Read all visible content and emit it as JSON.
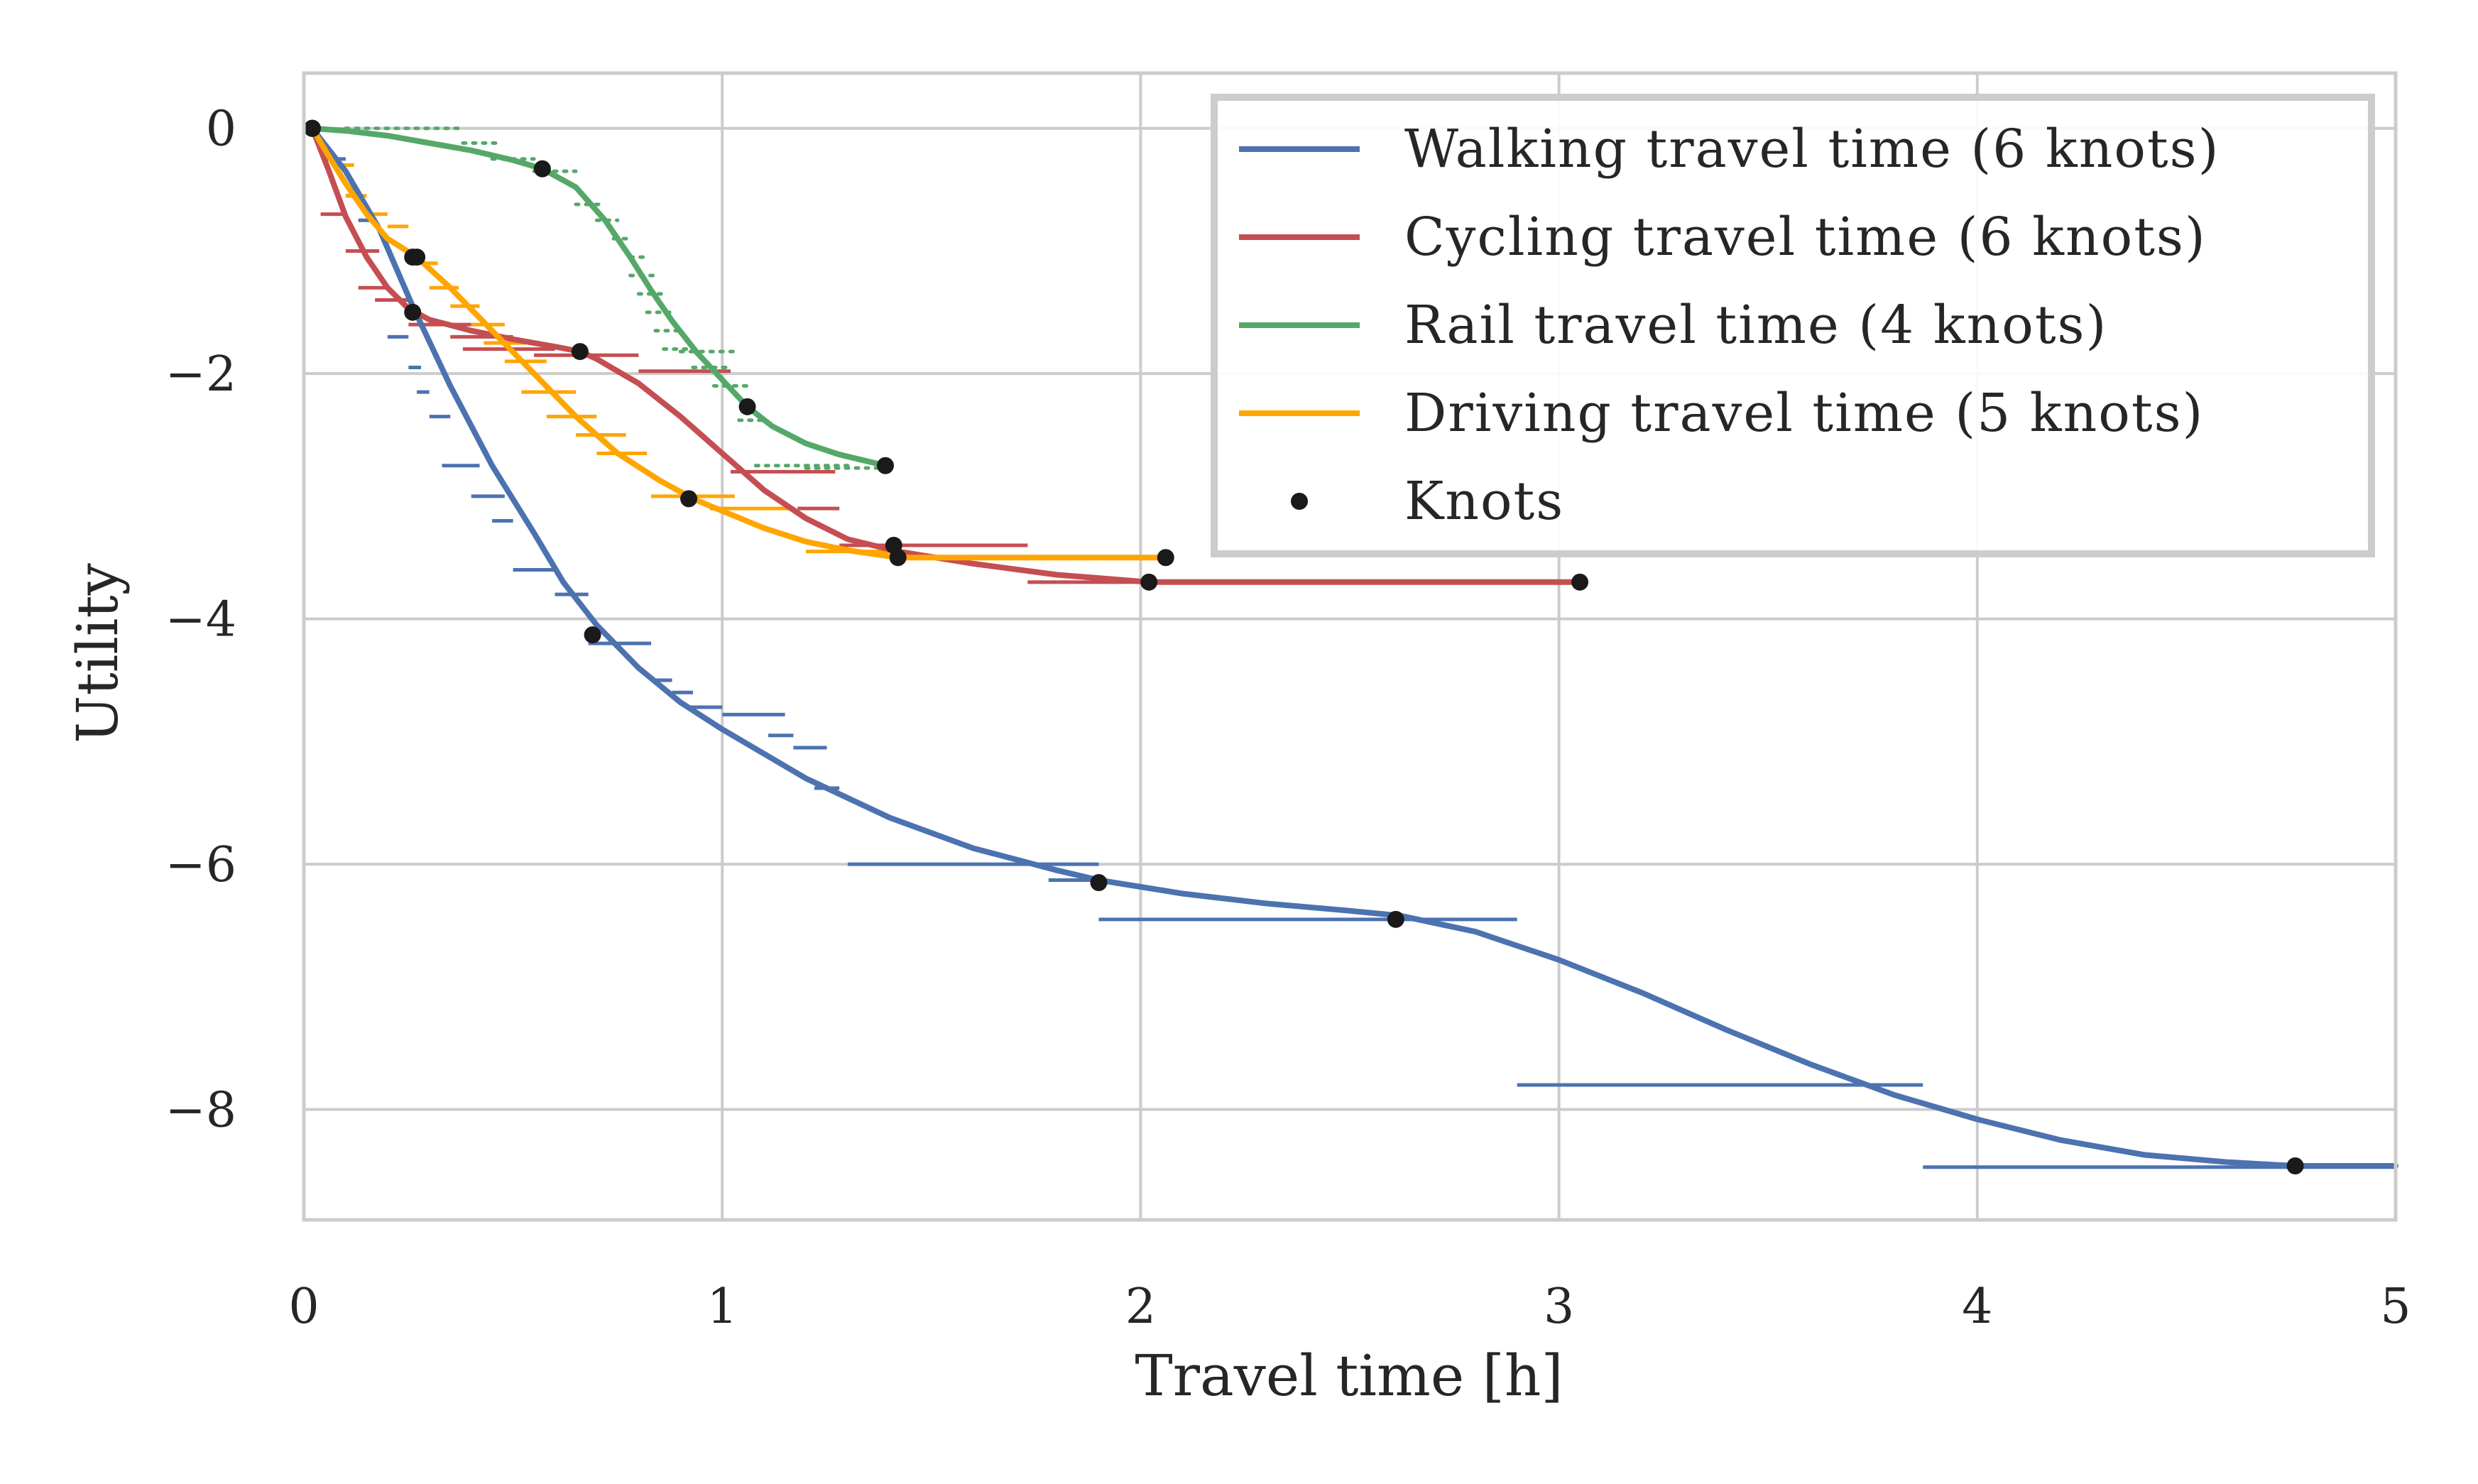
{
  "chart_data": {
    "type": "line",
    "title": "",
    "xlabel": "Travel time [h]",
    "ylabel": "Utility",
    "xlim": [
      0,
      5
    ],
    "ylim": [
      -8.9,
      0.45
    ],
    "xticks": [
      0,
      1,
      2,
      3,
      4,
      5
    ],
    "xtick_labels": [
      "0",
      "1",
      "2",
      "3",
      "4",
      "5"
    ],
    "yticks": [
      0,
      -2,
      -4,
      -6,
      -8
    ],
    "ytick_labels": [
      "0",
      "−2",
      "−4",
      "−6",
      "−8"
    ],
    "grid": true,
    "legend_position": "top-right",
    "colors": {
      "walking": "#4c72b0",
      "cycling": "#c44e52",
      "rail": "#55a868",
      "driving": "#ffa500",
      "knots": "#1a1a1a",
      "grid": "#cccccc",
      "frame": "#cccccc"
    },
    "series": [
      {
        "name": "Walking travel time (6 knots)",
        "color": "#4c72b0",
        "curve": [
          [
            0.02,
            0
          ],
          [
            0.1,
            -0.35
          ],
          [
            0.18,
            -0.82
          ],
          [
            0.26,
            -1.45
          ],
          [
            0.35,
            -2.1
          ],
          [
            0.45,
            -2.75
          ],
          [
            0.55,
            -3.3
          ],
          [
            0.62,
            -3.7
          ],
          [
            0.7,
            -4.05
          ],
          [
            0.8,
            -4.4
          ],
          [
            0.9,
            -4.68
          ],
          [
            1.0,
            -4.9
          ],
          [
            1.2,
            -5.3
          ],
          [
            1.4,
            -5.62
          ],
          [
            1.6,
            -5.87
          ],
          [
            1.8,
            -6.05
          ],
          [
            1.9,
            -6.13
          ],
          [
            2.1,
            -6.24
          ],
          [
            2.3,
            -6.32
          ],
          [
            2.5,
            -6.38
          ],
          [
            2.62,
            -6.42
          ],
          [
            2.8,
            -6.55
          ],
          [
            3.0,
            -6.78
          ],
          [
            3.2,
            -7.05
          ],
          [
            3.4,
            -7.35
          ],
          [
            3.6,
            -7.63
          ],
          [
            3.8,
            -7.88
          ],
          [
            4.0,
            -8.08
          ],
          [
            4.2,
            -8.25
          ],
          [
            4.4,
            -8.37
          ],
          [
            4.6,
            -8.43
          ],
          [
            4.76,
            -8.46
          ],
          [
            5.0,
            -8.46
          ]
        ],
        "knots": [
          [
            0.02,
            0
          ],
          [
            0.26,
            -1.05
          ],
          [
            0.69,
            -4.13
          ],
          [
            1.9,
            -6.15
          ],
          [
            2.61,
            -6.45
          ],
          [
            4.76,
            -8.46
          ]
        ],
        "steps": [
          [
            0.05,
            0.1,
            -0.25
          ],
          [
            0.1,
            0.14,
            -0.55
          ],
          [
            0.13,
            0.16,
            -0.75
          ],
          [
            0.2,
            0.25,
            -1.7
          ],
          [
            0.25,
            0.28,
            -1.95
          ],
          [
            0.27,
            0.3,
            -2.15
          ],
          [
            0.3,
            0.35,
            -2.35
          ],
          [
            0.33,
            0.42,
            -2.75
          ],
          [
            0.4,
            0.48,
            -3.0
          ],
          [
            0.45,
            0.5,
            -3.2
          ],
          [
            0.5,
            0.6,
            -3.6
          ],
          [
            0.6,
            0.68,
            -3.8
          ],
          [
            0.68,
            0.83,
            -4.2
          ],
          [
            0.83,
            0.88,
            -4.5
          ],
          [
            0.88,
            0.93,
            -4.6
          ],
          [
            0.92,
            1.0,
            -4.72
          ],
          [
            1.0,
            1.15,
            -4.78
          ],
          [
            1.11,
            1.17,
            -4.95
          ],
          [
            1.17,
            1.25,
            -5.05
          ],
          [
            1.22,
            1.28,
            -5.38
          ],
          [
            1.3,
            1.9,
            -6.0
          ],
          [
            1.78,
            1.9,
            -6.13
          ],
          [
            1.9,
            2.9,
            -6.45
          ],
          [
            2.9,
            3.87,
            -7.8
          ],
          [
            3.87,
            5.0,
            -8.47
          ]
        ]
      },
      {
        "name": "Cycling travel time (6 knots)",
        "color": "#c44e52",
        "curve": [
          [
            0.02,
            0
          ],
          [
            0.06,
            -0.35
          ],
          [
            0.1,
            -0.72
          ],
          [
            0.15,
            -1.05
          ],
          [
            0.2,
            -1.3
          ],
          [
            0.25,
            -1.47
          ],
          [
            0.3,
            -1.56
          ],
          [
            0.4,
            -1.65
          ],
          [
            0.5,
            -1.72
          ],
          [
            0.6,
            -1.78
          ],
          [
            0.66,
            -1.82
          ],
          [
            0.7,
            -1.88
          ],
          [
            0.8,
            -2.08
          ],
          [
            0.9,
            -2.35
          ],
          [
            1.0,
            -2.65
          ],
          [
            1.1,
            -2.95
          ],
          [
            1.2,
            -3.18
          ],
          [
            1.3,
            -3.35
          ],
          [
            1.42,
            -3.45
          ],
          [
            1.6,
            -3.55
          ],
          [
            1.8,
            -3.64
          ],
          [
            2.02,
            -3.7
          ],
          [
            2.3,
            -3.7
          ],
          [
            2.6,
            -3.7
          ],
          [
            3.05,
            -3.7
          ]
        ],
        "knots": [
          [
            0.02,
            0
          ],
          [
            0.26,
            -1.5
          ],
          [
            0.66,
            -1.82
          ],
          [
            1.41,
            -3.4
          ],
          [
            2.02,
            -3.7
          ],
          [
            3.05,
            -3.7
          ]
        ],
        "steps": [
          [
            0.04,
            0.1,
            -0.7
          ],
          [
            0.1,
            0.18,
            -1.0
          ],
          [
            0.13,
            0.2,
            -1.3
          ],
          [
            0.17,
            0.25,
            -1.4
          ],
          [
            0.25,
            0.4,
            -1.6
          ],
          [
            0.35,
            0.5,
            -1.7
          ],
          [
            0.38,
            0.6,
            -1.8
          ],
          [
            0.55,
            0.8,
            -1.85
          ],
          [
            0.8,
            1.02,
            -1.98
          ],
          [
            1.02,
            1.27,
            -2.8
          ],
          [
            1.18,
            1.28,
            -3.1
          ],
          [
            1.28,
            1.73,
            -3.4
          ],
          [
            1.73,
            3.05,
            -3.7
          ]
        ]
      },
      {
        "name": "Rail travel time (4 knots)",
        "color": "#55a868",
        "curve": [
          [
            0.02,
            0
          ],
          [
            0.1,
            -0.02
          ],
          [
            0.2,
            -0.06
          ],
          [
            0.3,
            -0.12
          ],
          [
            0.4,
            -0.18
          ],
          [
            0.5,
            -0.26
          ],
          [
            0.57,
            -0.33
          ],
          [
            0.65,
            -0.48
          ],
          [
            0.72,
            -0.75
          ],
          [
            0.78,
            -1.05
          ],
          [
            0.83,
            -1.32
          ],
          [
            0.88,
            -1.57
          ],
          [
            0.94,
            -1.83
          ],
          [
            1.0,
            -2.05
          ],
          [
            1.06,
            -2.27
          ],
          [
            1.12,
            -2.43
          ],
          [
            1.2,
            -2.57
          ],
          [
            1.28,
            -2.66
          ],
          [
            1.39,
            -2.75
          ]
        ],
        "knots": [
          [
            0.02,
            0
          ],
          [
            0.57,
            -0.33
          ],
          [
            1.06,
            -2.27
          ],
          [
            1.39,
            -2.75
          ]
        ]
      },
      {
        "name": "Driving travel time (5 knots)",
        "color": "#ffa500",
        "curve": [
          [
            0.02,
            0
          ],
          [
            0.06,
            -0.23
          ],
          [
            0.1,
            -0.45
          ],
          [
            0.15,
            -0.7
          ],
          [
            0.2,
            -0.9
          ],
          [
            0.27,
            -1.05
          ],
          [
            0.35,
            -1.3
          ],
          [
            0.45,
            -1.65
          ],
          [
            0.55,
            -2.0
          ],
          [
            0.65,
            -2.35
          ],
          [
            0.75,
            -2.65
          ],
          [
            0.85,
            -2.87
          ],
          [
            0.93,
            -3.02
          ],
          [
            1.0,
            -3.12
          ],
          [
            1.1,
            -3.26
          ],
          [
            1.2,
            -3.37
          ],
          [
            1.3,
            -3.44
          ],
          [
            1.42,
            -3.5
          ],
          [
            1.7,
            -3.5
          ],
          [
            2.06,
            -3.5
          ]
        ],
        "knots": [
          [
            0.02,
            0
          ],
          [
            0.27,
            -1.05
          ],
          [
            0.92,
            -3.02
          ],
          [
            1.42,
            -3.5
          ],
          [
            2.06,
            -3.5
          ]
        ],
        "steps": [
          [
            0.08,
            0.12,
            -0.3
          ],
          [
            0.1,
            0.15,
            -0.55
          ],
          [
            0.15,
            0.2,
            -0.7
          ],
          [
            0.2,
            0.25,
            -0.8
          ],
          [
            0.25,
            0.32,
            -1.1
          ],
          [
            0.3,
            0.37,
            -1.3
          ],
          [
            0.35,
            0.42,
            -1.45
          ],
          [
            0.4,
            0.48,
            -1.6
          ],
          [
            0.43,
            0.53,
            -1.75
          ],
          [
            0.48,
            0.58,
            -1.9
          ],
          [
            0.52,
            0.65,
            -2.15
          ],
          [
            0.58,
            0.7,
            -2.35
          ],
          [
            0.65,
            0.77,
            -2.5
          ],
          [
            0.7,
            0.82,
            -2.65
          ],
          [
            0.83,
            1.03,
            -3.0
          ],
          [
            0.97,
            1.17,
            -3.1
          ],
          [
            1.2,
            1.42,
            -3.45
          ],
          [
            1.42,
            2.06,
            -3.5
          ]
        ]
      }
    ],
    "rail_dots": [
      [
        0.1,
        0.38,
        0
      ],
      [
        0.38,
        0.46,
        -0.12
      ],
      [
        0.45,
        0.55,
        -0.25
      ],
      [
        0.55,
        0.65,
        -0.35
      ],
      [
        0.65,
        0.72,
        -0.62
      ],
      [
        0.7,
        0.75,
        -0.75
      ],
      [
        0.74,
        0.78,
        -0.9
      ],
      [
        0.78,
        0.82,
        -1.05
      ],
      [
        0.78,
        0.84,
        -1.2
      ],
      [
        0.8,
        0.86,
        -1.35
      ],
      [
        0.82,
        0.88,
        -1.5
      ],
      [
        0.84,
        0.9,
        -1.65
      ],
      [
        0.86,
        0.92,
        -1.8
      ],
      [
        0.9,
        1.03,
        -1.82
      ],
      [
        0.93,
        1.01,
        -1.95
      ],
      [
        0.98,
        1.06,
        -2.1
      ],
      [
        1.04,
        1.1,
        -2.38
      ],
      [
        1.08,
        1.3,
        -2.75
      ],
      [
        1.2,
        1.4,
        -2.77
      ]
    ],
    "legend": {
      "entries": [
        {
          "label": "Walking travel time (6 knots)",
          "color": "#4c72b0",
          "marker": "line"
        },
        {
          "label": "Cycling travel time (6 knots)",
          "color": "#c44e52",
          "marker": "line"
        },
        {
          "label": "Rail travel time (4 knots)",
          "color": "#55a868",
          "marker": "line"
        },
        {
          "label": "Driving travel time (5 knots)",
          "color": "#ffa500",
          "marker": "line"
        },
        {
          "label": "Knots",
          "color": "#1a1a1a",
          "marker": "dot"
        }
      ]
    }
  }
}
